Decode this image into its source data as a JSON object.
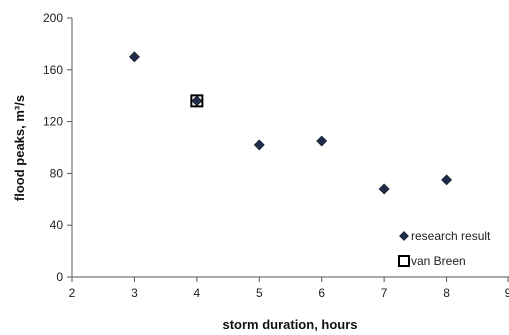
{
  "chart_data": {
    "type": "scatter",
    "title": "",
    "xlabel": "storm duration, hours",
    "ylabel": "flood peaks, m³/s",
    "xlim": [
      2,
      9
    ],
    "ylim": [
      0,
      200
    ],
    "xticks": [
      2,
      3,
      4,
      5,
      6,
      7,
      8,
      9
    ],
    "yticks": [
      0,
      40,
      80,
      120,
      160,
      200
    ],
    "xtick_labels": [
      "2",
      "3",
      "4",
      "5",
      "6",
      "7",
      "8",
      "9"
    ],
    "ytick_labels": [
      "0",
      "40",
      "80",
      "120",
      "160",
      "200"
    ],
    "grid": false,
    "legend_position": "bottom-right",
    "series": [
      {
        "name": "research result",
        "marker": "diamond",
        "color": "#1f2d4a",
        "points": [
          {
            "x": 3,
            "y": 170
          },
          {
            "x": 4,
            "y": 136
          },
          {
            "x": 5,
            "y": 102
          },
          {
            "x": 6,
            "y": 105
          },
          {
            "x": 7,
            "y": 68
          },
          {
            "x": 8,
            "y": 75
          }
        ]
      },
      {
        "name": "van Breen",
        "marker": "square-open",
        "color": "#000000",
        "points": [
          {
            "x": 4,
            "y": 136
          }
        ]
      }
    ]
  }
}
